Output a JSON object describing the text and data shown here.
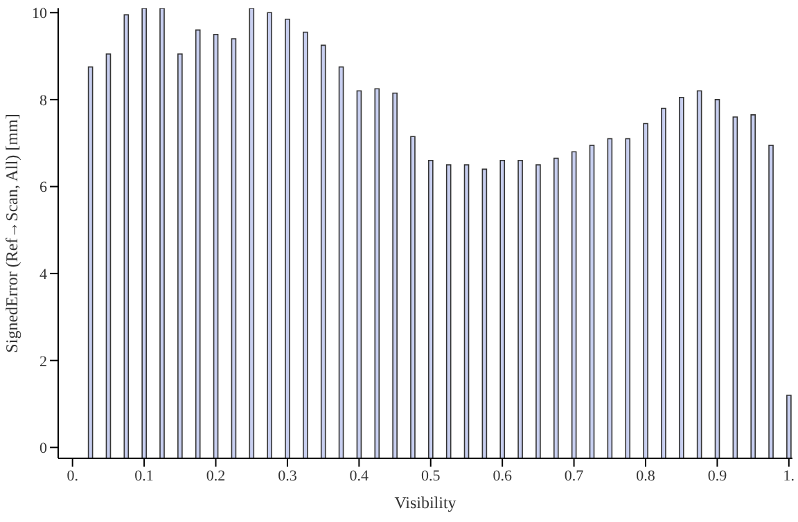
{
  "chart_data": {
    "type": "bar",
    "xlabel": "Visibility",
    "ylabel": "SignedError (Ref→Scan, All) [mm]",
    "color": "#c8cff0",
    "x": [
      0.025,
      0.05,
      0.075,
      0.1,
      0.125,
      0.15,
      0.175,
      0.2,
      0.225,
      0.25,
      0.275,
      0.3,
      0.325,
      0.35,
      0.375,
      0.4,
      0.425,
      0.45,
      0.475,
      0.5,
      0.525,
      0.55,
      0.575,
      0.6,
      0.625,
      0.65,
      0.675,
      0.7,
      0.725,
      0.75,
      0.775,
      0.8,
      0.825,
      0.85,
      0.875,
      0.9,
      0.925,
      0.95,
      0.975,
      1.0
    ],
    "base": [
      -0.25,
      -0.25,
      -0.25,
      -0.25,
      -0.25,
      -0.25,
      -0.25,
      -0.25,
      -0.25,
      -0.25,
      -0.25,
      -0.25,
      -0.25,
      -0.25,
      -0.25,
      -0.25,
      -0.25,
      -0.25,
      -0.25,
      -0.25,
      -0.25,
      -0.25,
      -0.25,
      -0.25,
      -0.25,
      -0.25,
      -0.25,
      -0.25,
      -0.25,
      -0.25,
      -0.25,
      -0.25,
      -0.25,
      -0.25,
      -0.25,
      -0.25,
      -0.25,
      -0.25,
      -0.25,
      -0.25
    ],
    "values": [
      9.0,
      9.3,
      10.2,
      10.35,
      10.35,
      9.3,
      9.85,
      9.75,
      9.65,
      10.35,
      10.25,
      10.1,
      9.8,
      9.5,
      9.0,
      8.45,
      8.5,
      8.4,
      7.4,
      6.85,
      6.75,
      6.75,
      6.65,
      6.85,
      6.85,
      6.75,
      6.9,
      7.05,
      7.2,
      7.35,
      7.35,
      7.7,
      8.05,
      8.3,
      8.45,
      8.25,
      7.85,
      7.9,
      7.2,
      1.45
    ],
    "xlim": [
      -0.02,
      1.005
    ],
    "xticks": [
      {
        "value": 0,
        "label": "0."
      },
      0.1,
      0.2,
      0.3,
      0.4,
      0.5,
      0.6,
      0.7,
      0.8,
      0.9,
      {
        "value": 1,
        "label": "1."
      }
    ],
    "ylim": [
      -0.25,
      10.1
    ],
    "yticks": [
      0,
      2,
      4,
      6,
      8,
      10
    ]
  }
}
